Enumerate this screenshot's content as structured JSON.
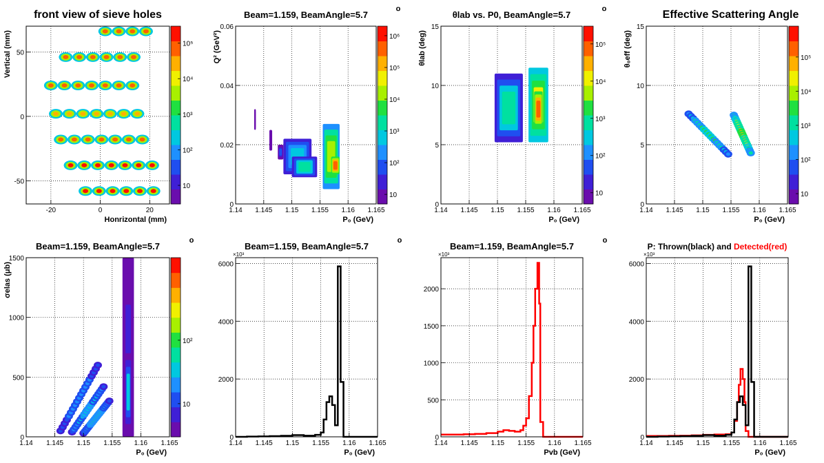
{
  "colors": {
    "thrown": "#000000",
    "detected": "#ff0000",
    "grid": "#000000"
  },
  "palette": [
    "#6a0dad",
    "#3f1fd6",
    "#1f4ef0",
    "#1e90ff",
    "#00c8e0",
    "#00e0a0",
    "#20e040",
    "#a8f000",
    "#f0f000",
    "#ffb000",
    "#ff6000",
    "#ff1000"
  ],
  "chart_data": [
    {
      "id": "sieve",
      "type": "heatmap",
      "title": "front view of sieve holes",
      "xlabel": "Honrizontal (mm)",
      "ylabel": "Vertical (mm)",
      "xlim": [
        -30,
        28
      ],
      "ylim": [
        -68,
        70
      ],
      "xticks": [
        {
          "v": -20,
          "t": "-20"
        },
        {
          "v": 0,
          "t": "0"
        },
        {
          "v": 20,
          "t": "20"
        }
      ],
      "yticks": [
        {
          "v": -50,
          "t": "-50"
        },
        {
          "v": 0,
          "t": "0"
        },
        {
          "v": 50,
          "t": "50"
        }
      ],
      "colorbar": {
        "log": true,
        "min": 3,
        "max": 300000,
        "ticks": [
          {
            "v": 10,
            "t": "10"
          },
          {
            "v": 100,
            "t": "10²"
          },
          {
            "v": 1000,
            "t": "10³"
          },
          {
            "v": 10000,
            "t": "10⁴"
          },
          {
            "v": 100000,
            "t": "10⁵"
          }
        ]
      },
      "grid": true,
      "blobs": [
        {
          "x": 2,
          "y": 66,
          "w": 2,
          "n": 4,
          "dx": 5.5,
          "level": 0.9
        },
        {
          "x": -14,
          "y": 46,
          "w": 2,
          "n": 6,
          "dx": 5.5,
          "level": 0.95
        },
        {
          "x": -20,
          "y": 24,
          "w": 2,
          "n": 7,
          "dx": 5.5,
          "level": 0.9
        },
        {
          "x": -18,
          "y": 2,
          "w": 2,
          "n": 7,
          "dx": 5.5,
          "level": 0.85
        },
        {
          "x": -16,
          "y": -18,
          "w": 2,
          "n": 7,
          "dx": 5.5,
          "level": 0.9
        },
        {
          "x": -12,
          "y": -38,
          "w": 2,
          "n": 7,
          "dx": 5.5,
          "level": 1.0
        },
        {
          "x": -6,
          "y": -58,
          "w": 2,
          "n": 6,
          "dx": 5.5,
          "level": 1.0
        }
      ]
    },
    {
      "id": "q2",
      "type": "heatmap",
      "title": "Beam=1.159, BeamAngle=5.7",
      "title_deg": "o",
      "xlabel": "P₀ (GeV)",
      "ylabel": "Q² (GeV²)",
      "xlim": [
        1.14,
        1.165
      ],
      "ylim": [
        0,
        0.06
      ],
      "xticks": [
        {
          "v": 1.14,
          "t": "1.14"
        },
        {
          "v": 1.145,
          "t": "1.145"
        },
        {
          "v": 1.15,
          "t": "1.15"
        },
        {
          "v": 1.155,
          "t": "1.155"
        },
        {
          "v": 1.16,
          "t": "1.16"
        },
        {
          "v": 1.165,
          "t": "1.165"
        }
      ],
      "yticks": [
        {
          "v": 0,
          "t": "0"
        },
        {
          "v": 0.02,
          "t": "0.02"
        },
        {
          "v": 0.04,
          "t": "0.04"
        },
        {
          "v": 0.06,
          "t": "0.06"
        }
      ],
      "colorbar": {
        "log": true,
        "min": 5,
        "max": 2000000,
        "ticks": [
          {
            "v": 10,
            "t": "10"
          },
          {
            "v": 100,
            "t": "10²"
          },
          {
            "v": 1000,
            "t": "10³"
          },
          {
            "v": 10000,
            "t": "10⁴"
          },
          {
            "v": 100000,
            "t": "10⁵"
          },
          {
            "v": 1000000,
            "t": "10⁶"
          }
        ]
      },
      "grid": true,
      "regions": [
        {
          "x0": 1.1433,
          "x1": 1.1436,
          "y0": 0.025,
          "y1": 0.032,
          "level": 0.1
        },
        {
          "x0": 1.146,
          "x1": 1.1465,
          "y0": 0.018,
          "y1": 0.025,
          "level": 0.15
        },
        {
          "x0": 1.1475,
          "x1": 1.1485,
          "y0": 0.015,
          "y1": 0.02,
          "level": 0.3
        },
        {
          "x0": 1.1485,
          "x1": 1.1535,
          "y0": 0.01,
          "y1": 0.022,
          "level": 0.5
        },
        {
          "x0": 1.15,
          "x1": 1.1545,
          "y0": 0.009,
          "y1": 0.016,
          "level": 0.55
        },
        {
          "x0": 1.1555,
          "x1": 1.1585,
          "y0": 0.005,
          "y1": 0.027,
          "level": 0.75
        },
        {
          "x0": 1.157,
          "x1": 1.1585,
          "y0": 0.01,
          "y1": 0.016,
          "level": 1.0
        }
      ]
    },
    {
      "id": "theta",
      "type": "heatmap",
      "title": "θlab vs. P0, BeamAngle=5.7",
      "title_deg": "o",
      "xlabel": "P₀ (GeV)",
      "ylabel": "θlab (deg)",
      "xlim": [
        1.14,
        1.165
      ],
      "ylim": [
        0,
        15
      ],
      "xticks": [
        {
          "v": 1.14,
          "t": "1.14"
        },
        {
          "v": 1.145,
          "t": "1.145"
        },
        {
          "v": 1.15,
          "t": "1.15"
        },
        {
          "v": 1.155,
          "t": "1.155"
        },
        {
          "v": 1.16,
          "t": "1.16"
        },
        {
          "v": 1.165,
          "t": "1.165"
        }
      ],
      "yticks": [
        {
          "v": 0,
          "t": "0"
        },
        {
          "v": 5,
          "t": "5"
        },
        {
          "v": 10,
          "t": "10"
        },
        {
          "v": 15,
          "t": "15"
        }
      ],
      "colorbar": {
        "log": true,
        "min": 5,
        "max": 300000,
        "ticks": [
          {
            "v": 10,
            "t": "10"
          },
          {
            "v": 100,
            "t": "10²"
          },
          {
            "v": 1000,
            "t": "10³"
          },
          {
            "v": 10000,
            "t": "10⁴"
          },
          {
            "v": 100000,
            "t": "10⁵"
          }
        ]
      },
      "grid": true,
      "regions": [
        {
          "x0": 1.1495,
          "x1": 1.1545,
          "y0": 5.2,
          "y1": 11.0,
          "level": 0.55
        },
        {
          "x0": 1.1555,
          "x1": 1.159,
          "y0": 5.2,
          "y1": 11.5,
          "level": 0.8
        },
        {
          "x0": 1.1565,
          "x1": 1.158,
          "y0": 6.5,
          "y1": 9.5,
          "level": 1.0
        }
      ]
    },
    {
      "id": "eff",
      "type": "heatmap",
      "title": "Effective Scattering Angle",
      "xlabel": "P₀ (GeV)",
      "ylabel": "θ₀eff (deg)",
      "xlim": [
        1.14,
        1.165
      ],
      "ylim": [
        0,
        15
      ],
      "xticks": [
        {
          "v": 1.14,
          "t": "1.14"
        },
        {
          "v": 1.145,
          "t": "1.145"
        },
        {
          "v": 1.15,
          "t": "1.15"
        },
        {
          "v": 1.155,
          "t": "1.155"
        },
        {
          "v": 1.16,
          "t": "1.16"
        },
        {
          "v": 1.165,
          "t": "1.165"
        }
      ],
      "yticks": [
        {
          "v": 0,
          "t": "0"
        },
        {
          "v": 5,
          "t": "5"
        },
        {
          "v": 10,
          "t": "10"
        },
        {
          "v": 15,
          "t": "15"
        }
      ],
      "colorbar": {
        "log": true,
        "min": 5,
        "max": 800000,
        "ticks": [
          {
            "v": 10,
            "t": "10"
          },
          {
            "v": 100,
            "t": "10²"
          },
          {
            "v": 1000,
            "t": "10³"
          },
          {
            "v": 10000,
            "t": "10⁴"
          },
          {
            "v": 100000,
            "t": "10⁵"
          }
        ]
      },
      "grid": true,
      "bands": [
        {
          "x0": 1.1475,
          "y0": 7.6,
          "x1": 1.1545,
          "y1": 4.2,
          "level": 0.55
        },
        {
          "x0": 1.1555,
          "y0": 7.5,
          "x1": 1.1585,
          "y1": 4.3,
          "level": 0.85
        }
      ]
    },
    {
      "id": "sigma",
      "type": "heatmap",
      "title": "Beam=1.159, BeamAngle=5.7",
      "title_deg": "o",
      "xlabel": "P₀ (GeV)",
      "ylabel": "σelas (μb)",
      "xlim": [
        1.14,
        1.165
      ],
      "ylim": [
        0,
        1500
      ],
      "xticks": [
        {
          "v": 1.14,
          "t": "1.14"
        },
        {
          "v": 1.145,
          "t": "1.145"
        },
        {
          "v": 1.15,
          "t": "1.15"
        },
        {
          "v": 1.155,
          "t": "1.155"
        },
        {
          "v": 1.16,
          "t": "1.16"
        },
        {
          "v": 1.165,
          "t": "1.165"
        }
      ],
      "yticks": [
        {
          "v": 0,
          "t": "0"
        },
        {
          "v": 500,
          "t": "500"
        },
        {
          "v": 1000,
          "t": "1000"
        },
        {
          "v": 1500,
          "t": "1500"
        }
      ],
      "colorbar": {
        "log": true,
        "min": 3,
        "max": 2000,
        "ticks": [
          {
            "v": 10,
            "t": "10"
          },
          {
            "v": 100,
            "t": "10²"
          }
        ]
      },
      "grid": true,
      "bands": [
        {
          "x0": 1.146,
          "y0": 50,
          "x1": 1.1525,
          "y1": 600,
          "level": 0.3
        },
        {
          "x0": 1.148,
          "y0": 40,
          "x1": 1.1535,
          "y1": 420,
          "level": 0.4
        },
        {
          "x0": 1.15,
          "y0": 30,
          "x1": 1.1545,
          "y1": 300,
          "level": 0.45
        }
      ],
      "regions": [
        {
          "x0": 1.1568,
          "x1": 1.1588,
          "y0": 0,
          "y1": 1500,
          "level": 0.2
        },
        {
          "x0": 1.1572,
          "x1": 1.1584,
          "y0": 50,
          "y1": 700,
          "level": 0.45
        }
      ]
    },
    {
      "id": "p0hist",
      "type": "bar",
      "title": "Beam=1.159, BeamAngle=5.7",
      "title_deg": "o",
      "xlabel": "P₀ (GeV)",
      "ylabel": "",
      "exponent": "×10³",
      "xlim": [
        1.14,
        1.165
      ],
      "ylim": [
        0,
        6200
      ],
      "xticks": [
        {
          "v": 1.14,
          "t": "1.14"
        },
        {
          "v": 1.145,
          "t": "1.145"
        },
        {
          "v": 1.15,
          "t": "1.15"
        },
        {
          "v": 1.155,
          "t": "1.155"
        },
        {
          "v": 1.16,
          "t": "1.16"
        },
        {
          "v": 1.165,
          "t": "1.165"
        }
      ],
      "yticks": [
        {
          "v": 0,
          "t": "0"
        },
        {
          "v": 2000,
          "t": "2000"
        },
        {
          "v": 4000,
          "t": "4000"
        },
        {
          "v": 6000,
          "t": "6000"
        }
      ],
      "grid": true,
      "series": [
        {
          "color": "#000000",
          "x": [
            1.14,
            1.142,
            1.144,
            1.146,
            1.148,
            1.15,
            1.152,
            1.154,
            1.155,
            1.1555,
            1.156,
            1.1565,
            1.157,
            1.1575,
            1.158,
            1.1585,
            1.159,
            1.1595,
            1.16,
            1.162,
            1.165
          ],
          "y": [
            0,
            10,
            15,
            25,
            35,
            60,
            40,
            70,
            150,
            600,
            1200,
            1400,
            1100,
            400,
            5900,
            1900,
            0,
            0,
            0,
            0,
            0
          ]
        }
      ]
    },
    {
      "id": "pvbhist",
      "type": "bar",
      "title": "Beam=1.159, BeamAngle=5.7",
      "title_deg": "o",
      "xlabel": "Pvb (GeV)",
      "ylabel": "",
      "exponent": "×10³",
      "xlim": [
        1.14,
        1.165
      ],
      "ylim": [
        0,
        2420
      ],
      "xticks": [
        {
          "v": 1.14,
          "t": "1.14"
        },
        {
          "v": 1.145,
          "t": "1.145"
        },
        {
          "v": 1.15,
          "t": "1.15"
        },
        {
          "v": 1.155,
          "t": "1.155"
        },
        {
          "v": 1.16,
          "t": "1.16"
        },
        {
          "v": 1.165,
          "t": "1.165"
        }
      ],
      "yticks": [
        {
          "v": 0,
          "t": "0"
        },
        {
          "v": 500,
          "t": "500"
        },
        {
          "v": 1000,
          "t": "1000"
        },
        {
          "v": 1500,
          "t": "1500"
        },
        {
          "v": 2000,
          "t": "2000"
        }
      ],
      "grid": true,
      "series": [
        {
          "color": "#ff0000",
          "x": [
            1.14,
            1.142,
            1.144,
            1.146,
            1.148,
            1.15,
            1.151,
            1.152,
            1.153,
            1.154,
            1.1545,
            1.155,
            1.1555,
            1.156,
            1.1563,
            1.1566,
            1.157,
            1.1573,
            1.1575,
            1.158,
            1.165
          ],
          "y": [
            30,
            30,
            35,
            40,
            50,
            70,
            90,
            80,
            70,
            90,
            150,
            250,
            550,
            1000,
            1500,
            2000,
            2350,
            1800,
            200,
            0,
            0
          ]
        }
      ]
    },
    {
      "id": "compare",
      "type": "bar",
      "title": "P: Thrown(black) and Detected(red)",
      "title_parts": {
        "lead": "P: Thrown(black) and ",
        "red": "Detected(red)"
      },
      "xlabel": "P₀ (GeV)",
      "ylabel": "",
      "exponent": "×10³",
      "xlim": [
        1.14,
        1.165
      ],
      "ylim": [
        0,
        6200
      ],
      "xticks": [
        {
          "v": 1.14,
          "t": "1.14"
        },
        {
          "v": 1.145,
          "t": "1.145"
        },
        {
          "v": 1.15,
          "t": "1.15"
        },
        {
          "v": 1.155,
          "t": "1.155"
        },
        {
          "v": 1.16,
          "t": "1.16"
        },
        {
          "v": 1.165,
          "t": "1.165"
        }
      ],
      "yticks": [
        {
          "v": 0,
          "t": "0"
        },
        {
          "v": 2000,
          "t": "2000"
        },
        {
          "v": 4000,
          "t": "4000"
        },
        {
          "v": 6000,
          "t": "6000"
        }
      ],
      "grid": true,
      "series": [
        {
          "color": "#ff0000",
          "x": [
            1.14,
            1.142,
            1.144,
            1.146,
            1.148,
            1.15,
            1.152,
            1.154,
            1.155,
            1.1555,
            1.156,
            1.1563,
            1.1566,
            1.157,
            1.1573,
            1.1575,
            1.158,
            1.165
          ],
          "y": [
            30,
            30,
            35,
            40,
            50,
            70,
            80,
            90,
            150,
            550,
            1200,
            1800,
            2350,
            2000,
            1200,
            200,
            0,
            0
          ]
        },
        {
          "color": "#000000",
          "x": [
            1.14,
            1.142,
            1.144,
            1.146,
            1.148,
            1.15,
            1.152,
            1.154,
            1.155,
            1.1555,
            1.156,
            1.1565,
            1.157,
            1.1575,
            1.158,
            1.1585,
            1.159,
            1.165
          ],
          "y": [
            0,
            10,
            15,
            25,
            35,
            60,
            40,
            70,
            150,
            600,
            1200,
            1400,
            1100,
            400,
            5900,
            1900,
            0,
            0
          ]
        }
      ]
    }
  ]
}
